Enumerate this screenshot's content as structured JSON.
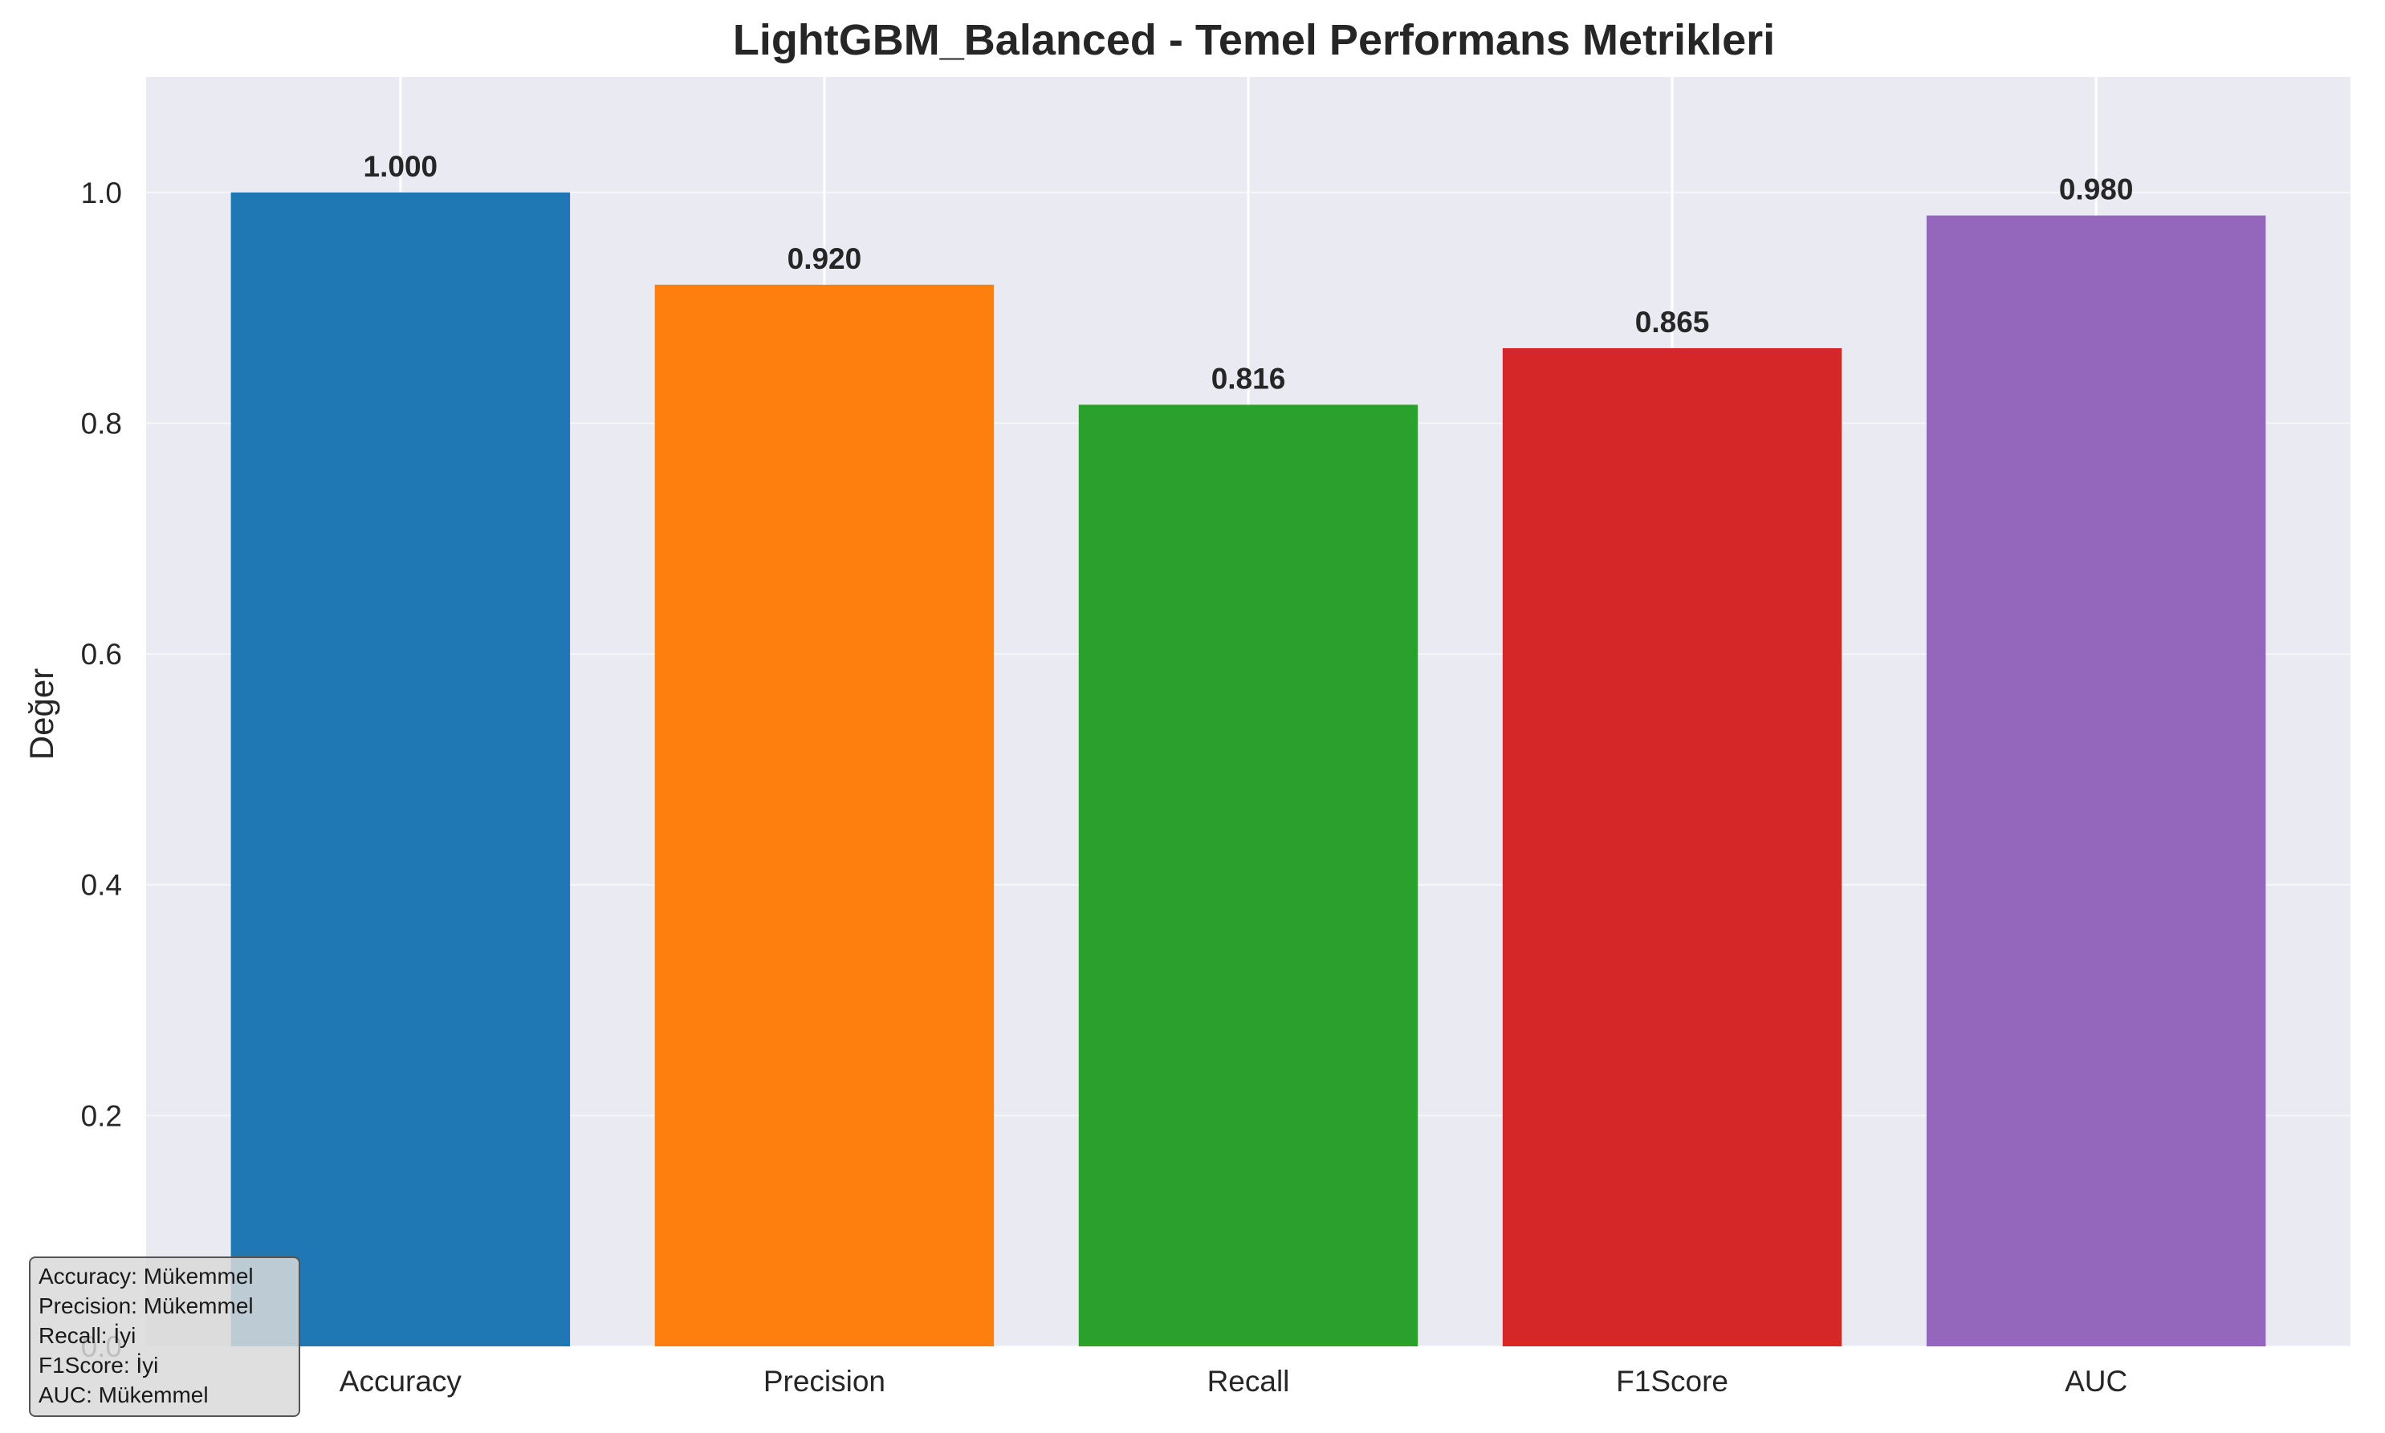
{
  "chart_data": {
    "type": "bar",
    "title": "LightGBM_Balanced - Temel Performans Metrikleri",
    "xlabel": "",
    "ylabel": "Değer",
    "categories": [
      "Accuracy",
      "Precision",
      "Recall",
      "F1Score",
      "AUC"
    ],
    "values": [
      1.0,
      0.92,
      0.816,
      0.865,
      0.98
    ],
    "data_labels": [
      "1.000",
      "0.920",
      "0.816",
      "0.865",
      "0.980"
    ],
    "colors": [
      "#1f77b4",
      "#ff7f0e",
      "#2ca02c",
      "#d62728",
      "#9467bd"
    ],
    "ylim": [
      0.0,
      1.1
    ],
    "yticks": [
      0.0,
      0.2,
      0.4,
      0.6,
      0.8,
      1.0
    ],
    "ytick_labels": [
      "0.0",
      "0.2",
      "0.4",
      "0.6",
      "0.8",
      "1.0"
    ],
    "grid": true,
    "background": "#eaeaf2",
    "annotation_box": {
      "placement": "bottom-left",
      "lines": [
        "Accuracy: Mükemmel",
        "Precision: Mükemmel",
        "Recall: İyi",
        "F1Score: İyi",
        "AUC: Mükemmel"
      ]
    }
  }
}
